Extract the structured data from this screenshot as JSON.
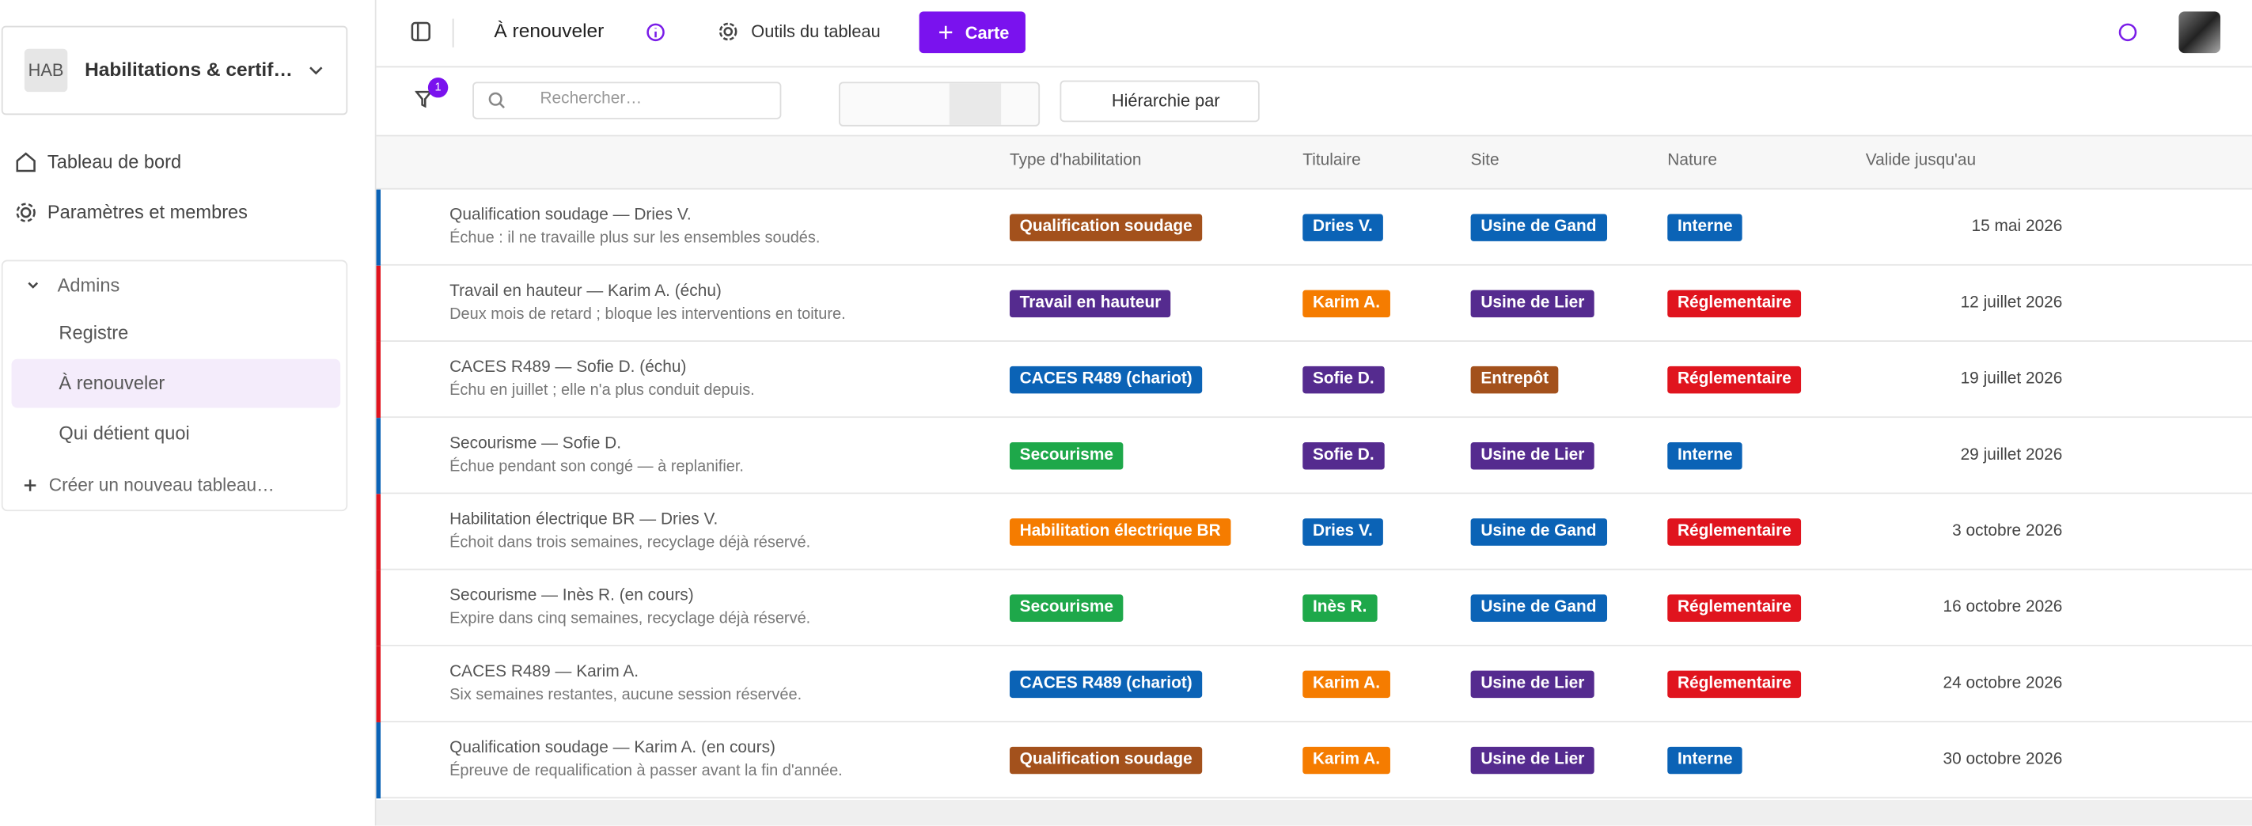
{
  "sidebar": {
    "workspace": {
      "abbr": "HAB",
      "name": "Habilitations & certif…"
    },
    "nav": [
      "Tableau de bord",
      "Paramètres et membres"
    ],
    "group": {
      "name": "Admins",
      "views": [
        "Registre",
        "À renouveler",
        "Qui détient quoi"
      ],
      "create": "Créer un nouveau tableau…"
    }
  },
  "topbar": {
    "title": "À renouveler",
    "tools": "Outils du tableau",
    "add_button": "Carte"
  },
  "toolbar": {
    "filter_count": 1,
    "search_placeholder": "Rechercher…",
    "group_by": "Hiérarchie par"
  },
  "table": {
    "columns": [
      "Type d'habilitation",
      "Titulaire",
      "Site",
      "Nature",
      "Valide jusqu'au"
    ],
    "rows": [
      {
        "accent": "#0b63b6",
        "title": "Qualification soudage — Dries V.",
        "subtitle": "Échue : il ne travaille plus sur les ensembles soudés.",
        "type": {
          "text": "Qualification soudage",
          "color": "#a3511c"
        },
        "holder": {
          "text": "Dries V.",
          "color": "#0b63b6"
        },
        "site": {
          "text": "Usine de Gand",
          "color": "#0b63b6"
        },
        "nature": {
          "text": "Interne",
          "color": "#0b63b6"
        },
        "valid": "15 mai 2026"
      },
      {
        "accent": "#e0141e",
        "title": "Travail en hauteur — Karim A. (échu)",
        "subtitle": "Deux mois de retard ; bloque les interventions en toiture.",
        "type": {
          "text": "Travail en hauteur",
          "color": "#552b8f"
        },
        "holder": {
          "text": "Karim A.",
          "color": "#f57c00"
        },
        "site": {
          "text": "Usine de Lier",
          "color": "#552b8f"
        },
        "nature": {
          "text": "Réglementaire",
          "color": "#e0141e"
        },
        "valid": "12 juillet 2026"
      },
      {
        "accent": "#e0141e",
        "title": "CACES R489 — Sofie D. (échu)",
        "subtitle": "Échu en juillet ; elle n'a plus conduit depuis.",
        "type": {
          "text": "CACES R489 (chariot)",
          "color": "#0b63b6"
        },
        "holder": {
          "text": "Sofie D.",
          "color": "#552b8f"
        },
        "site": {
          "text": "Entrepôt",
          "color": "#a3511c"
        },
        "nature": {
          "text": "Réglementaire",
          "color": "#e0141e"
        },
        "valid": "19 juillet 2026"
      },
      {
        "accent": "#0b63b6",
        "title": "Secourisme — Sofie D.",
        "subtitle": "Échue pendant son congé — à replanifier.",
        "type": {
          "text": "Secourisme",
          "color": "#1ea84a"
        },
        "holder": {
          "text": "Sofie D.",
          "color": "#552b8f"
        },
        "site": {
          "text": "Usine de Lier",
          "color": "#552b8f"
        },
        "nature": {
          "text": "Interne",
          "color": "#0b63b6"
        },
        "valid": "29 juillet 2026"
      },
      {
        "accent": "#e0141e",
        "title": "Habilitation électrique BR — Dries V.",
        "subtitle": "Échoit dans trois semaines, recyclage déjà réservé.",
        "type": {
          "text": "Habilitation électrique BR",
          "color": "#f57c00"
        },
        "holder": {
          "text": "Dries V.",
          "color": "#0b63b6"
        },
        "site": {
          "text": "Usine de Gand",
          "color": "#0b63b6"
        },
        "nature": {
          "text": "Réglementaire",
          "color": "#e0141e"
        },
        "valid": "3 octobre 2026"
      },
      {
        "accent": "#e0141e",
        "title": "Secourisme — Inès R. (en cours)",
        "subtitle": "Expire dans cinq semaines, recyclage déjà réservé.",
        "type": {
          "text": "Secourisme",
          "color": "#1ea84a"
        },
        "holder": {
          "text": "Inès R.",
          "color": "#1ea84a"
        },
        "site": {
          "text": "Usine de Gand",
          "color": "#0b63b6"
        },
        "nature": {
          "text": "Réglementaire",
          "color": "#e0141e"
        },
        "valid": "16 octobre 2026"
      },
      {
        "accent": "#e0141e",
        "title": "CACES R489 — Karim A.",
        "subtitle": "Six semaines restantes, aucune session réservée.",
        "type": {
          "text": "CACES R489 (chariot)",
          "color": "#0b63b6"
        },
        "holder": {
          "text": "Karim A.",
          "color": "#f57c00"
        },
        "site": {
          "text": "Usine de Lier",
          "color": "#552b8f"
        },
        "nature": {
          "text": "Réglementaire",
          "color": "#e0141e"
        },
        "valid": "24 octobre 2026"
      },
      {
        "accent": "#0b63b6",
        "title": "Qualification soudage — Karim A. (en cours)",
        "subtitle": "Épreuve de requalification à passer avant la fin d'année.",
        "type": {
          "text": "Qualification soudage",
          "color": "#a3511c"
        },
        "holder": {
          "text": "Karim A.",
          "color": "#f57c00"
        },
        "site": {
          "text": "Usine de Lier",
          "color": "#552b8f"
        },
        "nature": {
          "text": "Interne",
          "color": "#0b63b6"
        },
        "valid": "30 octobre 2026"
      }
    ]
  }
}
